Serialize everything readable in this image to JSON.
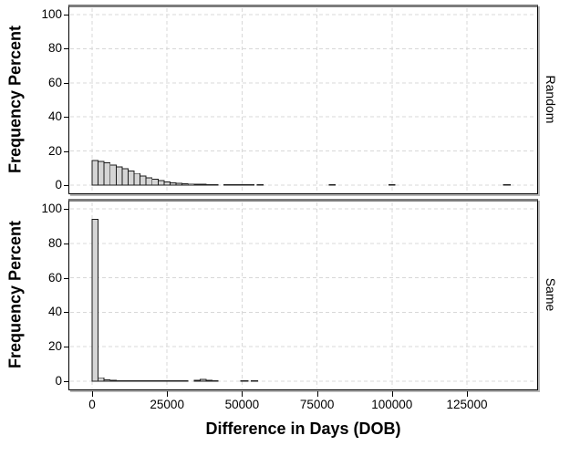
{
  "chart_data": {
    "type": "bar",
    "subtype": "faceted-histogram",
    "title": "",
    "xlabel": "Difference in Days (DOB)",
    "ylabel": "Frequency Percent",
    "x_ticks": [
      0,
      25000,
      50000,
      75000,
      100000,
      125000
    ],
    "x_tick_labels": [
      "0",
      "25000",
      "50000",
      "75000",
      "100000",
      "125000"
    ],
    "y_ticks": [
      0,
      20,
      40,
      60,
      80,
      100
    ],
    "y_tick_labels": [
      "0",
      "20",
      "40",
      "60",
      "80",
      "100"
    ],
    "xlim": [
      -7600,
      148500
    ],
    "ylim": [
      0,
      100
    ],
    "grid": "dashed",
    "legend": "none",
    "default_bin_width": 2000,
    "colors": {
      "bar_fill": "#d5d5d5",
      "bar_stroke": "#1c1c1c",
      "grid": "#d8d8d8",
      "frame": "#000000",
      "frame_top": "#7d7d7d",
      "shadow": "#b8b8b8",
      "background": "#ffffff"
    },
    "panels": [
      {
        "label": "Random",
        "bars": [
          [
            0,
            14.5
          ],
          [
            2000,
            14.0
          ],
          [
            4000,
            13.0
          ],
          [
            6000,
            11.8
          ],
          [
            8000,
            10.7
          ],
          [
            10000,
            9.7
          ],
          [
            12000,
            8.2
          ],
          [
            14000,
            6.8
          ],
          [
            16000,
            5.4
          ],
          [
            18000,
            4.3
          ],
          [
            20000,
            3.4
          ],
          [
            22000,
            2.6
          ],
          [
            24000,
            1.9
          ],
          [
            26000,
            1.4
          ],
          [
            28000,
            1.1
          ],
          [
            30000,
            0.8
          ],
          [
            32000,
            0.65
          ],
          [
            34000,
            0.55
          ],
          [
            36000,
            0.5
          ],
          [
            38000,
            0.4
          ],
          [
            40000,
            0.35
          ],
          [
            44000,
            0.3
          ],
          [
            46000,
            0.3
          ],
          [
            48000,
            0.3
          ],
          [
            50000,
            0.25
          ],
          [
            52000,
            0.3
          ],
          [
            55000,
            0.3
          ],
          [
            79000,
            0.3
          ],
          [
            99000,
            0.3
          ],
          [
            137200,
            0.35,
            2200
          ]
        ]
      },
      {
        "label": "Same",
        "bars": [
          [
            0,
            94.0
          ],
          [
            2000,
            2.0
          ],
          [
            4000,
            0.8
          ],
          [
            6000,
            0.45
          ],
          [
            8000,
            0.4
          ],
          [
            10000,
            0.4
          ],
          [
            12000,
            0.4
          ],
          [
            14000,
            0.4
          ],
          [
            16000,
            0.4
          ],
          [
            18000,
            0.4
          ],
          [
            20000,
            0.4
          ],
          [
            22000,
            0.4
          ],
          [
            24000,
            0.4
          ],
          [
            26000,
            0.4
          ],
          [
            28000,
            0.4
          ],
          [
            30000,
            0.4
          ],
          [
            34000,
            0.5
          ],
          [
            36000,
            1.0
          ],
          [
            38000,
            0.5
          ],
          [
            40000,
            0.4
          ],
          [
            49500,
            0.3,
            2500
          ],
          [
            53000,
            0.3,
            2200
          ]
        ]
      }
    ]
  }
}
